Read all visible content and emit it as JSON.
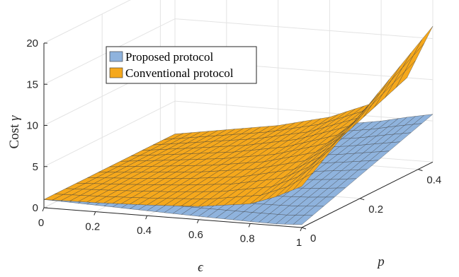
{
  "chart_data": {
    "type": "surface",
    "legend": {
      "placement": "top-left",
      "entries": [
        {
          "label": "Proposed protocol",
          "color": "#8fb3dd"
        },
        {
          "label": "Conventional protocol",
          "color": "#f5a81c"
        }
      ]
    },
    "axes": {
      "x": {
        "label": "ϵ",
        "range": [
          0,
          1
        ],
        "ticks": [
          "0",
          "0.2",
          "0.4",
          "0.6",
          "0.8",
          "1"
        ]
      },
      "y": {
        "label": "p",
        "range": [
          0,
          0.45
        ],
        "ticks": [
          "0",
          "0.2",
          "0.4"
        ]
      },
      "z": {
        "label_text": "Cost",
        "label_symbol": "γ",
        "range": [
          0,
          20
        ],
        "ticks": [
          "0",
          "5",
          "10",
          "15",
          "20"
        ]
      }
    },
    "grid": true,
    "series": [
      {
        "name": "Proposed protocol",
        "epsilon": [
          0,
          0.2,
          0.4,
          0.6,
          0.8,
          0.9,
          1
        ],
        "p": [
          0,
          0.1,
          0.2,
          0.3,
          0.45
        ],
        "gamma_at_p0": [
          1.0,
          0.8,
          0.6,
          0.4,
          0.25,
          0.2,
          0.35
        ],
        "gamma_at_p045": [
          1.0,
          1.8,
          2.6,
          3.5,
          4.5,
          5.2,
          5.8
        ]
      },
      {
        "name": "Conventional protocol",
        "epsilon": [
          0,
          0.2,
          0.4,
          0.6,
          0.8,
          0.9,
          1
        ],
        "p": [
          0,
          0.1,
          0.2,
          0.3,
          0.45
        ],
        "gamma_at_p0": [
          1.0,
          1.1,
          1.3,
          1.6,
          2.4,
          3.5,
          5.0
        ],
        "gamma_at_p045": [
          1.0,
          2.0,
          3.0,
          4.5,
          7.0,
          10.0,
          16.5
        ]
      }
    ]
  }
}
